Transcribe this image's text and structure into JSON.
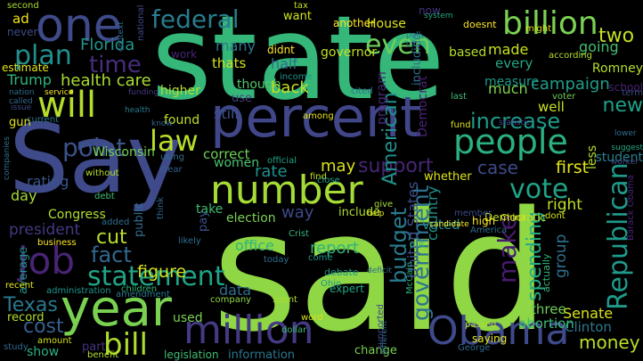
{
  "words": [
    {
      "text": "state",
      "color": "#35b779"
    },
    {
      "text": "said",
      "color": "#8fd744"
    },
    {
      "text": "Say",
      "color": "#3e4a89"
    },
    {
      "text": "percent",
      "color": "#404688"
    },
    {
      "text": "people",
      "color": "#2bb07f"
    },
    {
      "text": "one",
      "color": "#3e4a89"
    },
    {
      "text": "year",
      "color": "#7ad151"
    },
    {
      "text": "Obama",
      "color": "#3e4a89"
    },
    {
      "text": "number",
      "color": "#a5db36"
    },
    {
      "text": "million",
      "color": "#443a83"
    },
    {
      "text": "will",
      "color": "#b5de2b"
    },
    {
      "text": "job",
      "color": "#482475"
    },
    {
      "text": "law",
      "color": "#b8de29"
    },
    {
      "text": "billion",
      "color": "#7ad151"
    },
    {
      "text": "federal",
      "color": "#287c8e"
    },
    {
      "text": "vote",
      "color": "#20a386"
    },
    {
      "text": "bill",
      "color": "#addc30"
    },
    {
      "text": "statement",
      "color": "#20a486"
    },
    {
      "text": "even",
      "color": "#6ccd5a"
    },
    {
      "text": "point",
      "color": "#3b528b"
    },
    {
      "text": "Republican",
      "color": "#1f9a8a"
    },
    {
      "text": "make",
      "color": "#481b6d"
    },
    {
      "text": "plan",
      "color": "#21908d"
    },
    {
      "text": "time",
      "color": "#472d7b"
    },
    {
      "text": "fact",
      "color": "#31688e"
    },
    {
      "text": "cut",
      "color": "#b8de29"
    },
    {
      "text": "government",
      "color": "#2d718e"
    },
    {
      "text": "two",
      "color": "#c2df23"
    },
    {
      "text": "Texas",
      "color": "#2a788e"
    },
    {
      "text": "spending",
      "color": "#25ab82"
    },
    {
      "text": "money",
      "color": "#b8de29"
    },
    {
      "text": "support",
      "color": "#482576"
    },
    {
      "text": "case",
      "color": "#3e4a89"
    },
    {
      "text": "increase",
      "color": "#1e9b8a"
    },
    {
      "text": "new",
      "color": "#1fa088"
    },
    {
      "text": "cost",
      "color": "#35608d"
    },
    {
      "text": "budget",
      "color": "#287c8e"
    },
    {
      "text": "health care",
      "color": "#a8db34"
    },
    {
      "text": "American",
      "color": "#21918c"
    },
    {
      "text": "campaign",
      "color": "#1f9e89"
    },
    {
      "text": "figure",
      "color": "#d2e21b"
    },
    {
      "text": "first",
      "color": "#e5e419"
    },
    {
      "text": "Florida",
      "color": "#1f968b"
    },
    {
      "text": "many",
      "color": "#2a778e"
    },
    {
      "text": "rate",
      "color": "#20928c"
    },
    {
      "text": "report",
      "color": "#2fb47c"
    },
    {
      "text": "may",
      "color": "#d8e219"
    },
    {
      "text": "way",
      "color": "#3e4989"
    },
    {
      "text": "Trump",
      "color": "#2fb47c"
    },
    {
      "text": "going",
      "color": "#44bf70"
    },
    {
      "text": "back",
      "color": "#c5e021"
    },
    {
      "text": "half",
      "color": "#2e6e8e"
    },
    {
      "text": "thats",
      "color": "#d2e21b"
    },
    {
      "text": "made",
      "color": "#cae11f"
    },
    {
      "text": "every",
      "color": "#22a785"
    },
    {
      "text": "much",
      "color": "#7fd34e"
    },
    {
      "text": "right",
      "color": "#bddf26"
    },
    {
      "text": "group",
      "color": "#2e6f8e"
    },
    {
      "text": "Senate",
      "color": "#d8e219"
    },
    {
      "text": "Clinton",
      "color": "#2a788e"
    },
    {
      "text": "three",
      "color": "#6ece58"
    },
    {
      "text": "abortion",
      "color": "#3aba76"
    },
    {
      "text": "rating",
      "color": "#39558c"
    },
    {
      "text": "president",
      "color": "#453882"
    },
    {
      "text": "day",
      "color": "#a2da37"
    },
    {
      "text": "Congress",
      "color": "#b0dd2f"
    },
    {
      "text": "still",
      "color": "#3b528b"
    },
    {
      "text": "found",
      "color": "#c0df25"
    },
    {
      "text": "correct",
      "color": "#6ece58"
    },
    {
      "text": "women",
      "color": "#4ac16d"
    },
    {
      "text": "data",
      "color": "#2e6e8e"
    },
    {
      "text": "election",
      "color": "#7ad151"
    },
    {
      "text": "office",
      "color": "#2fb47c"
    },
    {
      "text": "used",
      "color": "#7ad151"
    },
    {
      "text": "show",
      "color": "#29af7f"
    },
    {
      "text": "record",
      "color": "#b2dd2d"
    },
    {
      "text": "part",
      "color": "#46337f"
    },
    {
      "text": "average",
      "color": "#1f958b"
    },
    {
      "text": "information",
      "color": "#2a788e"
    },
    {
      "text": "legislation",
      "color": "#3fbc73"
    },
    {
      "text": "change",
      "color": "#7ad151"
    },
    {
      "text": "higher",
      "color": "#b5de2b"
    },
    {
      "text": "take",
      "color": "#3fbc73"
    },
    {
      "text": "pay",
      "color": "#3b528b"
    },
    {
      "text": "use",
      "color": "#433e85"
    },
    {
      "text": "though",
      "color": "#52c569"
    },
    {
      "text": "want",
      "color": "#d2e21b"
    },
    {
      "text": "didnt",
      "color": "#fde725"
    },
    {
      "text": "another",
      "color": "#fde725"
    },
    {
      "text": "House",
      "color": "#dde318"
    },
    {
      "text": "governor",
      "color": "#c2df23"
    },
    {
      "text": "Democrat",
      "color": "#482475"
    },
    {
      "text": "program",
      "color": "#482878"
    },
    {
      "text": "United States",
      "color": "#3d4d8a"
    },
    {
      "text": "country",
      "color": "#21918c"
    },
    {
      "text": "voted",
      "color": "#228c8d"
    },
    {
      "text": "whether",
      "color": "#dde318"
    },
    {
      "text": "include",
      "color": "#addc30"
    },
    {
      "text": "public",
      "color": "#2f6c8e"
    },
    {
      "text": "Wisconsin",
      "color": "#73d056"
    },
    {
      "text": "estimate",
      "color": "#e5e419"
    },
    {
      "text": "well",
      "color": "#c8e020"
    },
    {
      "text": "based",
      "color": "#b5de2b"
    },
    {
      "text": "measure",
      "color": "#1f9a8a"
    },
    {
      "text": "including",
      "color": "#2e6e8e"
    },
    {
      "text": "student",
      "color": "#27808e"
    },
    {
      "text": "Romney",
      "color": "#b5de2b"
    },
    {
      "text": "school",
      "color": "#482475"
    },
    {
      "text": "ad",
      "color": "#efe51c"
    },
    {
      "text": "never",
      "color": "#3e4a89"
    },
    {
      "text": "second",
      "color": "#a8db34"
    },
    {
      "text": "tax",
      "color": "#c2df23"
    },
    {
      "text": "now",
      "color": "#45337d"
    },
    {
      "text": "doesnt",
      "color": "#fde725"
    },
    {
      "text": "might",
      "color": "#dde318"
    },
    {
      "text": "according",
      "color": "#b5de2b"
    },
    {
      "text": "voter",
      "color": "#6ece58"
    },
    {
      "text": "term",
      "color": "#3e4a89"
    },
    {
      "text": "gun",
      "color": "#e2e418"
    },
    {
      "text": "business",
      "color": "#fde725"
    },
    {
      "text": "recent",
      "color": "#e5e419"
    },
    {
      "text": "amount",
      "color": "#d2e21b"
    },
    {
      "text": "study",
      "color": "#31688e"
    },
    {
      "text": "benefit",
      "color": "#b5de2b"
    },
    {
      "text": "children",
      "color": "#31b57b"
    },
    {
      "text": "administration",
      "color": "#1f958b"
    },
    {
      "text": "amendment",
      "color": "#2a788e"
    },
    {
      "text": "company",
      "color": "#8fd744"
    },
    {
      "text": "spent",
      "color": "#addc30"
    },
    {
      "text": "word",
      "color": "#d2e21b"
    },
    {
      "text": "dollar",
      "color": "#3fbc73"
    },
    {
      "text": "expert",
      "color": "#22a785"
    },
    {
      "text": "debate",
      "color": "#20928c"
    },
    {
      "text": "Ohio",
      "color": "#1f968b"
    },
    {
      "text": "saying",
      "color": "#e2e418"
    },
    {
      "text": "passed",
      "color": "#b5de2b"
    },
    {
      "text": "George",
      "color": "#31688e"
    },
    {
      "text": "McCain",
      "color": "#29af7f"
    },
    {
      "text": "Democratic",
      "color": "#b8de29"
    },
    {
      "text": "less",
      "color": "#b5de2b"
    },
    {
      "text": "actually",
      "color": "#31b57b"
    },
    {
      "text": "dont",
      "color": "#d8e219"
    },
    {
      "text": "China",
      "color": "#dde318"
    },
    {
      "text": "high",
      "color": "#fde725"
    },
    {
      "text": "America",
      "color": "#2e6e8e"
    },
    {
      "text": "member",
      "color": "#3e4a89"
    },
    {
      "text": "candidate",
      "color": "#fde725"
    },
    {
      "text": "put",
      "color": "#31b57b"
    },
    {
      "text": "fund",
      "color": "#dde318"
    },
    {
      "text": "last",
      "color": "#3fbc73"
    },
    {
      "text": "give",
      "color": "#a5db36"
    },
    {
      "text": "help",
      "color": "#dde318"
    },
    {
      "text": "find",
      "color": "#c2df23"
    },
    {
      "text": "close",
      "color": "#1f9e89"
    },
    {
      "text": "cited",
      "color": "#2e6e8e"
    },
    {
      "text": "among",
      "color": "#e5e419"
    },
    {
      "text": "income",
      "color": "#1f968b"
    },
    {
      "text": "work",
      "color": "#482475"
    },
    {
      "text": "official",
      "color": "#20a386"
    },
    {
      "text": "Crist",
      "color": "#2fb47c"
    },
    {
      "text": "today",
      "color": "#2e6e8e"
    },
    {
      "text": "likely",
      "color": "#2e6e8e"
    },
    {
      "text": "added",
      "color": "#2e6e8e"
    },
    {
      "text": "debt",
      "color": "#3fbc73"
    },
    {
      "text": "think",
      "color": "#31688e"
    },
    {
      "text": "without",
      "color": "#b5de2b"
    },
    {
      "text": "using",
      "color": "#2e6e8e"
    },
    {
      "text": "clear",
      "color": "#35608d"
    },
    {
      "text": "funding",
      "color": "#443a83"
    },
    {
      "text": "national",
      "color": "#3e4a89"
    },
    {
      "text": "context",
      "color": "#2e6e8e"
    },
    {
      "text": "nation",
      "color": "#2e6e8e"
    },
    {
      "text": "service",
      "color": "#fde725"
    },
    {
      "text": "called",
      "color": "#31688e"
    },
    {
      "text": "issue",
      "color": "#3e4a89"
    },
    {
      "text": "current",
      "color": "#2a788e"
    },
    {
      "text": "know",
      "color": "#31688e"
    },
    {
      "text": "health",
      "color": "#2a788e"
    },
    {
      "text": "system",
      "color": "#22a785"
    },
    {
      "text": "poll",
      "color": "#2a788e"
    },
    {
      "text": "city",
      "color": "#2e6e8e"
    },
    {
      "text": "statistic",
      "color": "#3e4a89"
    },
    {
      "text": "lower",
      "color": "#2e6e8e"
    },
    {
      "text": "suggest",
      "color": "#22a785"
    },
    {
      "text": "worker",
      "color": "#3e4a89"
    },
    {
      "text": "deficit",
      "color": "#2e6e8e"
    },
    {
      "text": "different",
      "color": "#2e6e8e"
    },
    {
      "text": "supported",
      "color": "#3e4a89"
    },
    {
      "text": "come",
      "color": "#1f968b"
    },
    {
      "text": "companies",
      "color": "#2e6e8e"
    },
    {
      "text": "Barack Obama",
      "color": "#482475"
    }
  ]
}
